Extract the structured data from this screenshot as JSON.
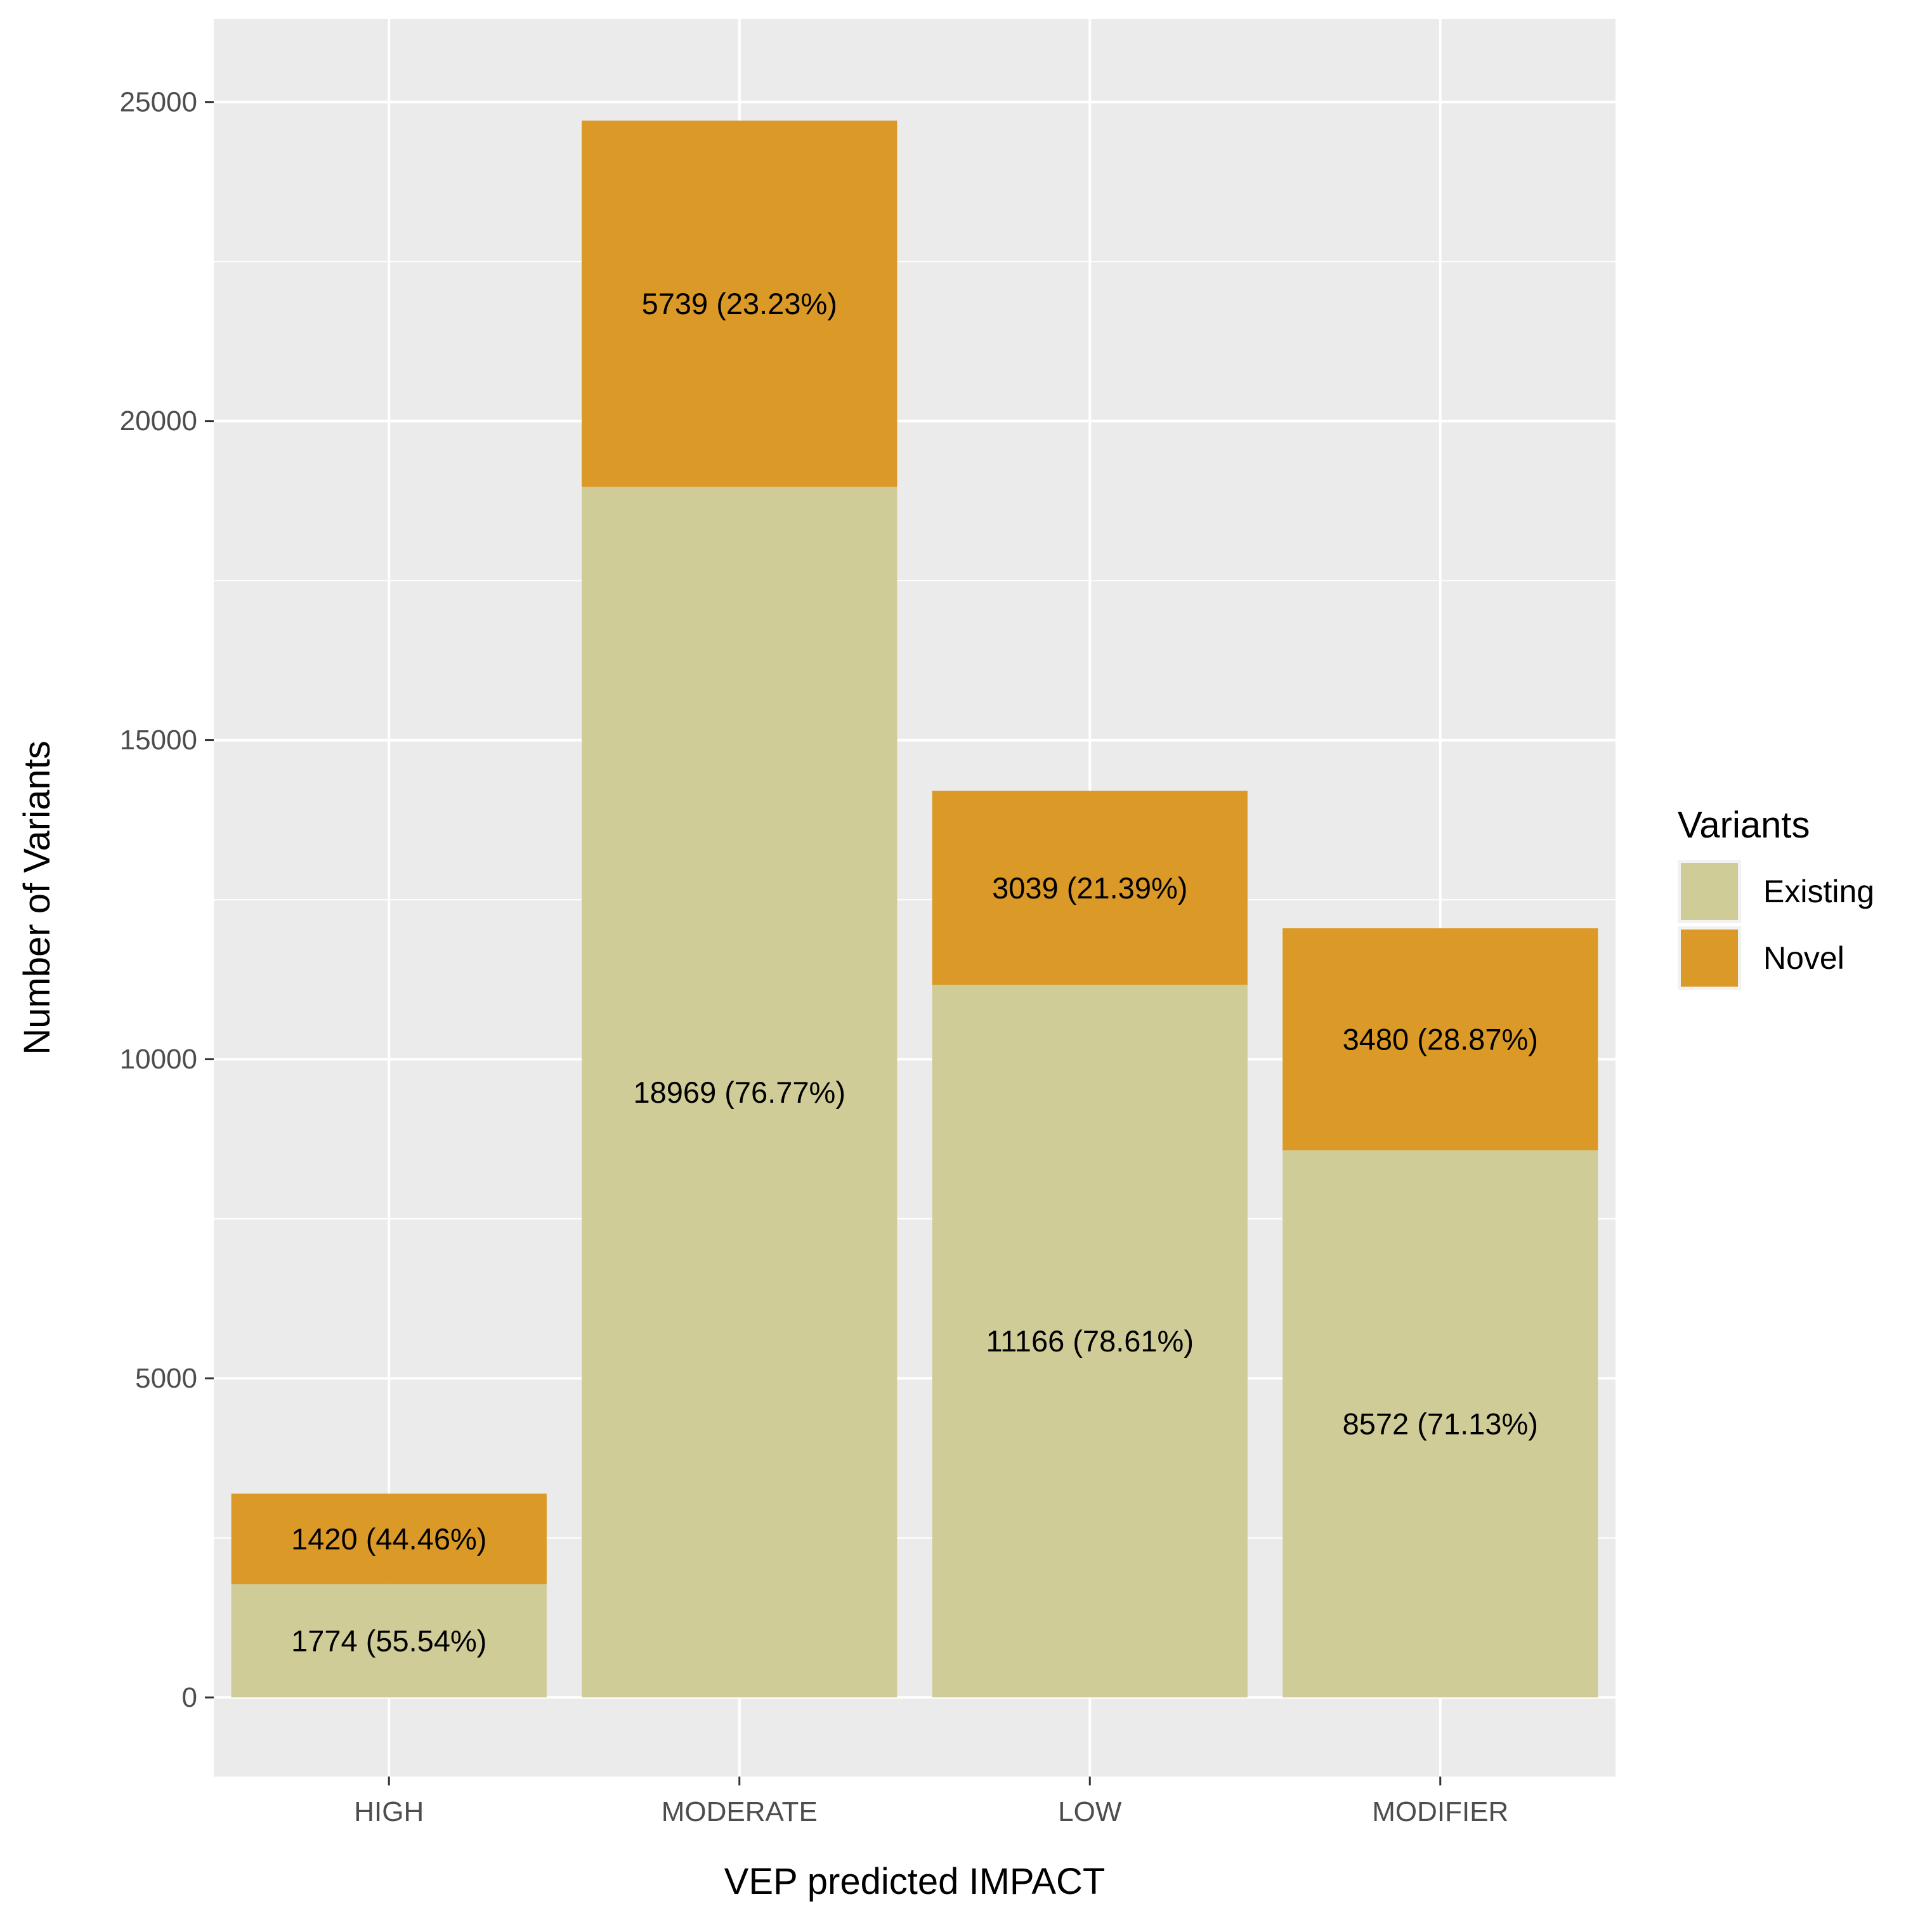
{
  "chart_data": {
    "type": "bar",
    "stacked": true,
    "categories": [
      "HIGH",
      "MODERATE",
      "LOW",
      "MODIFIER"
    ],
    "series": [
      {
        "name": "Existing",
        "color": "#D0CC98",
        "values": [
          1774,
          18969,
          11166,
          8572
        ],
        "labels": [
          "1774 (55.54%)",
          "18969 (76.77%)",
          "11166 (78.61%)",
          "8572 (71.13%)"
        ]
      },
      {
        "name": "Novel",
        "color": "#DB9A27",
        "values": [
          1420,
          5739,
          3039,
          3480
        ],
        "labels": [
          "1420 (44.46%)",
          "5739 (23.23%)",
          "3039 (21.39%)",
          "3480 (28.87%)"
        ]
      }
    ],
    "xlabel": "VEP predicted IMPACT",
    "ylabel": "Number of Variants",
    "ylim": [
      -1240,
      26300
    ],
    "yticks": [
      0,
      5000,
      10000,
      15000,
      20000,
      25000
    ],
    "ytick_labels": [
      "0",
      "5000",
      "10000",
      "15000",
      "20000",
      "25000"
    ],
    "grid": true,
    "legend": {
      "title": "Variants",
      "position": "right"
    },
    "panel_color": "#EBEBEB",
    "grid_color": "#FFFFFF"
  }
}
